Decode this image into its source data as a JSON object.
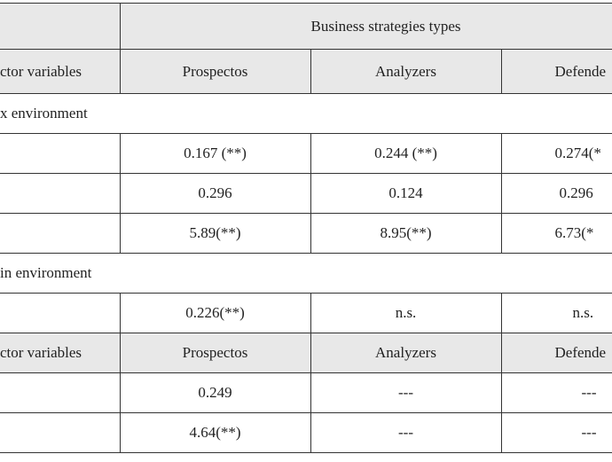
{
  "table": {
    "header": {
      "group": "Business strategies types",
      "columns": [
        "ctor variables",
        "Prospectos",
        "Analyzers",
        "Defende"
      ]
    },
    "sections": [
      {
        "title": "x environment",
        "rows": [
          [
            "0.167 (**)",
            "0.244 (**)",
            "0.274(*"
          ],
          [
            "0.296",
            "0.124",
            "0.296"
          ],
          [
            "5.89(**)",
            "8.95(**)",
            "6.73(*"
          ]
        ]
      },
      {
        "title": "in environment",
        "rows": [
          [
            "0.226(**)",
            "n.s.",
            "n.s."
          ]
        ],
        "subheader": [
          "ctor variables",
          "Prospectos",
          "Analyzers",
          "Defende"
        ],
        "subrows": [
          [
            "0.249",
            "---",
            "---"
          ],
          [
            "4.64(**)",
            "---",
            "---"
          ]
        ]
      }
    ]
  }
}
